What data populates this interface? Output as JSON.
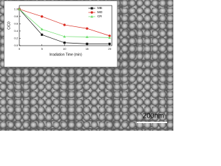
{
  "chart_data": {
    "type": "line",
    "x_label": "Irradiation Time (min)",
    "y_label": "C/C0",
    "x": [
      0,
      5,
      10,
      15,
      20
    ],
    "xlim": [
      0,
      20.5
    ],
    "xticks": [
      0,
      5,
      10,
      15,
      20
    ],
    "ylim": [
      0,
      1.1
    ],
    "yticks": [
      {
        "value": 0,
        "label": "0.0"
      },
      {
        "value": 0.2,
        "label": "0.2"
      },
      {
        "value": 0.4,
        "label": "0.4"
      },
      {
        "value": 0.6,
        "label": "0.6"
      },
      {
        "value": 0.8,
        "label": "0.8"
      },
      {
        "value": 1,
        "label": "1.0"
      }
    ],
    "legend": "upper right",
    "series": [
      {
        "name": "MB",
        "color": "#111111",
        "marker": "square",
        "values": [
          1.0,
          0.3,
          0.08,
          0.05,
          0.05
        ]
      },
      {
        "name": "MO",
        "color": "#d9281e",
        "marker": "circle",
        "values": [
          1.0,
          0.8,
          0.57,
          0.47,
          0.27
        ]
      },
      {
        "name": "CR",
        "color": "#66dd66",
        "marker": "triangle",
        "values": [
          1.0,
          0.45,
          0.25,
          0.24,
          0.22
        ]
      }
    ],
    "annotations": [
      "200nm"
    ]
  }
}
